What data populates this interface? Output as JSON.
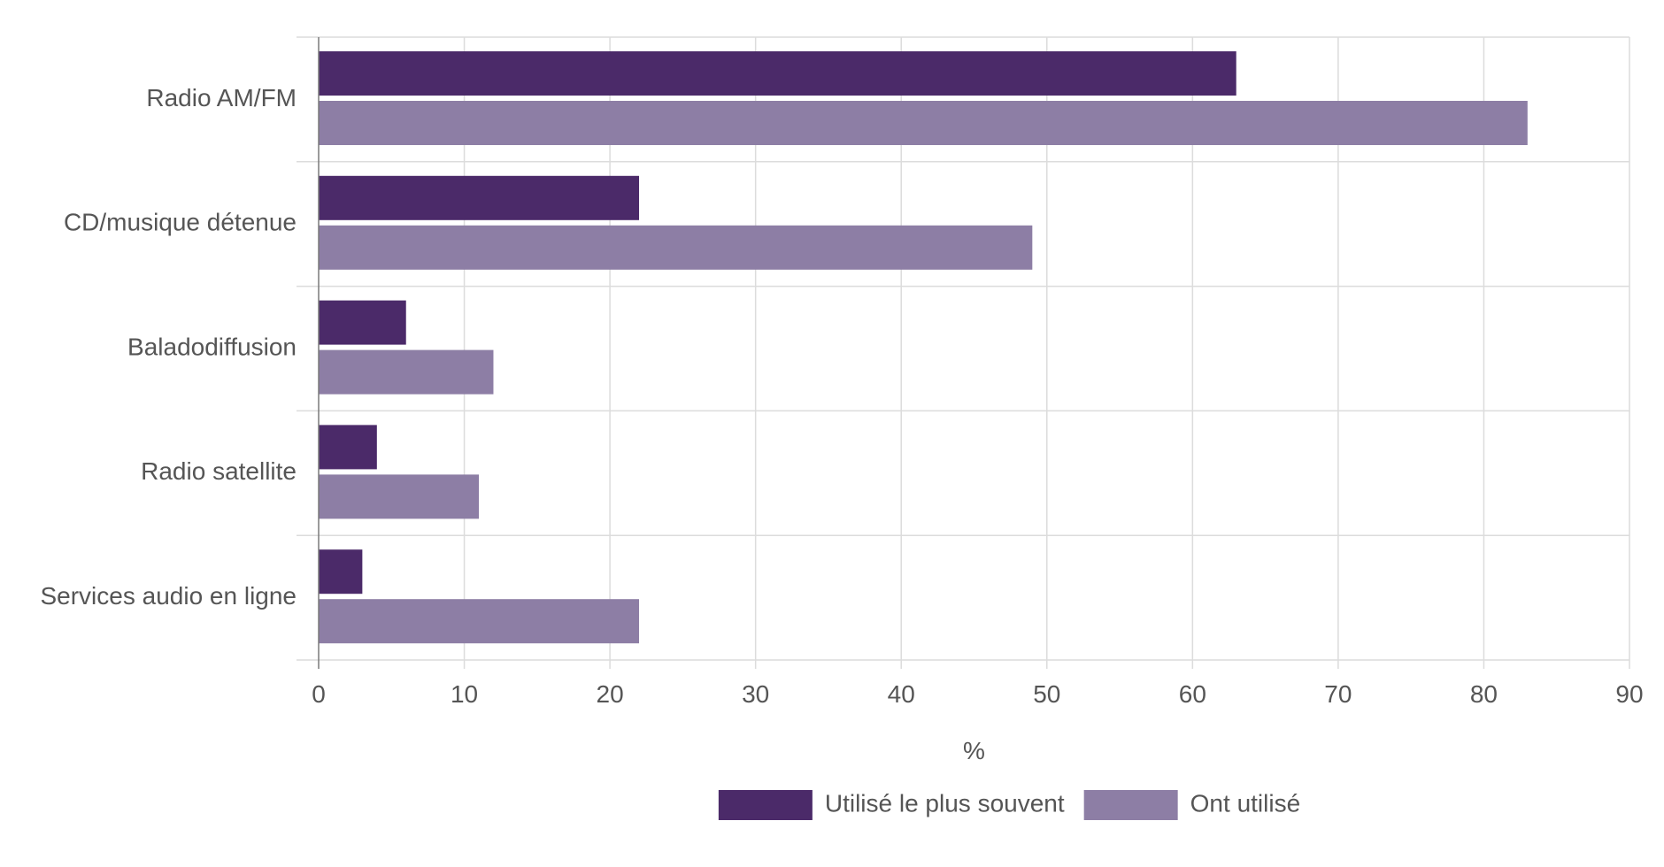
{
  "chart_data": {
    "type": "bar",
    "orientation": "horizontal",
    "categories": [
      "Radio AM/FM",
      "CD/musique détenue",
      "Baladodiffusion",
      "Radio satellite",
      "Services audio en ligne"
    ],
    "series": [
      {
        "name": "Utilisé le plus souvent",
        "color": "#4b2a69",
        "values": [
          63,
          22,
          6,
          4,
          3
        ]
      },
      {
        "name": "Ont utilisé",
        "color": "#8d7ea5",
        "values": [
          83,
          49,
          12,
          11,
          22
        ]
      }
    ],
    "xlabel": "%",
    "ylabel": "",
    "xlim": [
      0,
      90
    ],
    "xticks": [
      0,
      10,
      20,
      30,
      40,
      50,
      60,
      70,
      80,
      90
    ],
    "grid": true,
    "legend_position": "bottom"
  }
}
